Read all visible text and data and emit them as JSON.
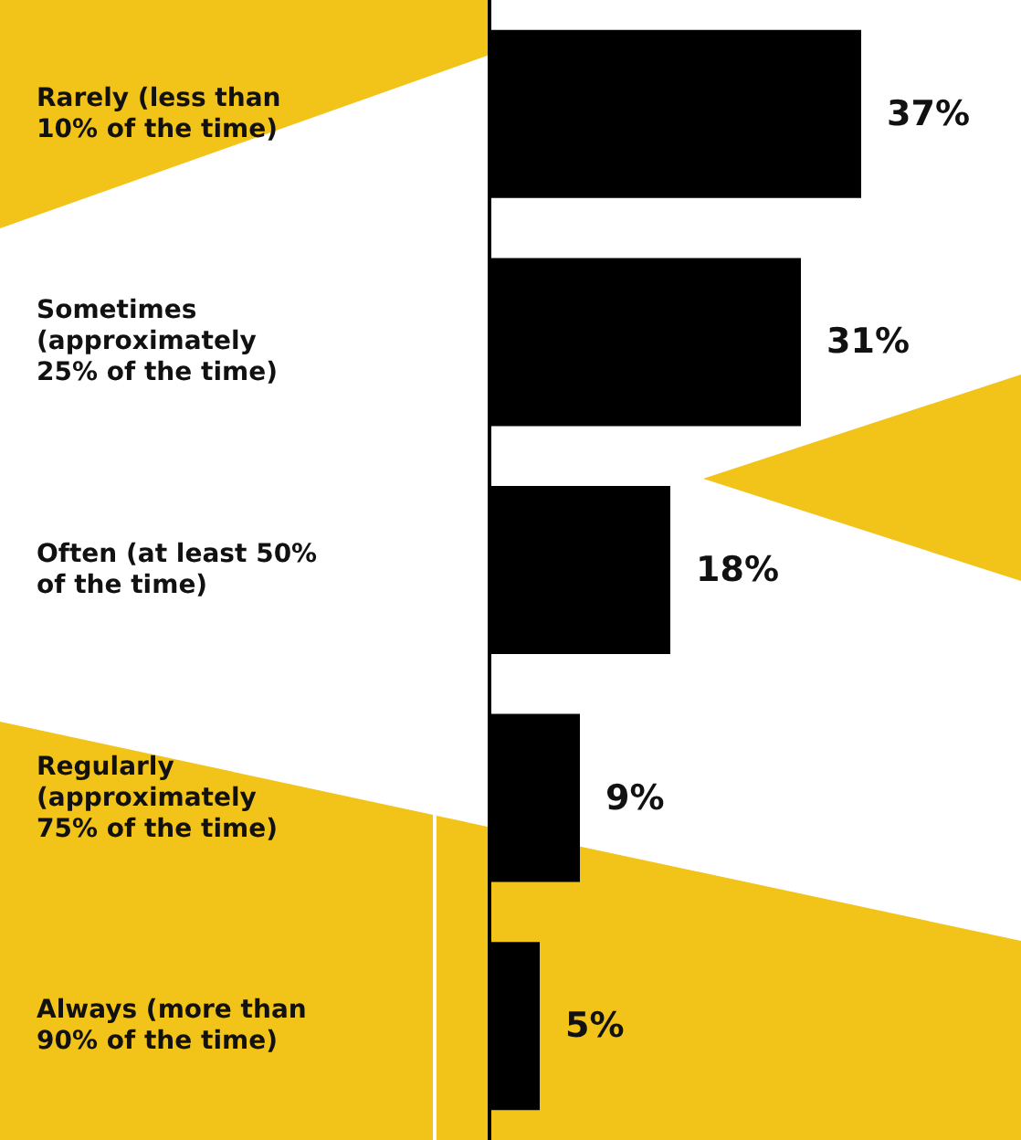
{
  "chart_data": {
    "type": "bar",
    "orientation": "horizontal",
    "categories": [
      "Rarely (less than\n10% of the time)",
      "Sometimes\n(approximately\n25% of the time)",
      "Often (at least 50%\nof the time)",
      "Regularly\n(approximately\n75% of the time)",
      "Always (more than\n90% of the time)"
    ],
    "values": [
      37,
      31,
      18,
      9,
      5
    ],
    "value_labels": [
      "37%",
      "31%",
      "18%",
      "9%",
      "5%"
    ],
    "color": "#000000"
  }
}
